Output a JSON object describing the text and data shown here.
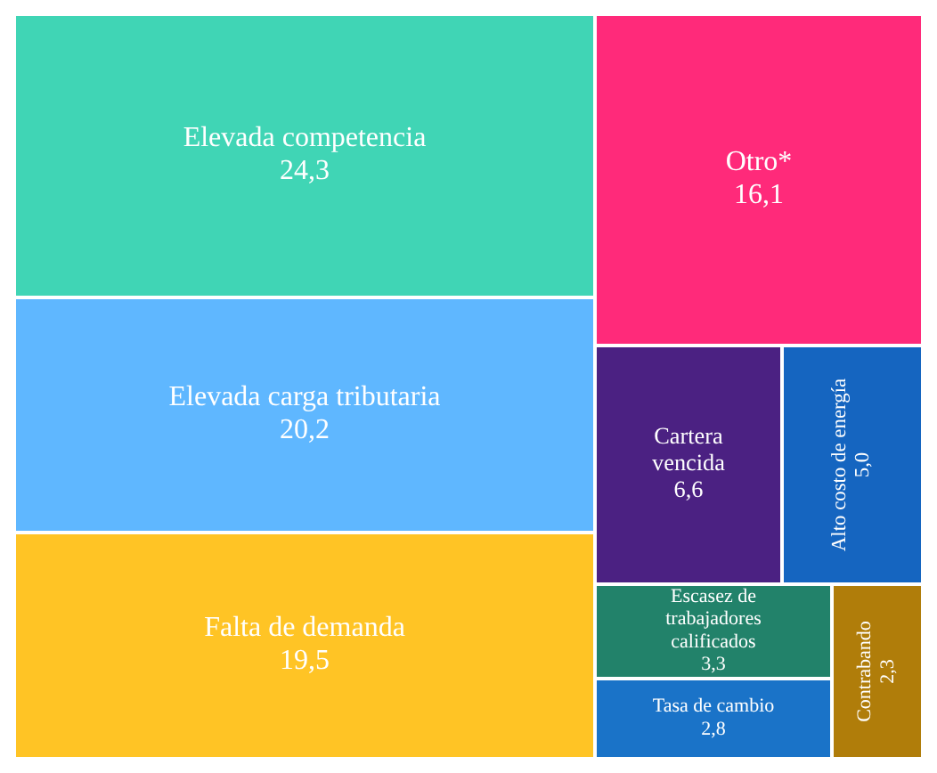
{
  "chart_data": {
    "type": "other",
    "categories": [
      "Elevada competencia",
      "Elevada carga tributaria",
      "Falta de demanda",
      "Otro*",
      "Cartera vencida",
      "Alto costo de energía",
      "Escasez de trabajadores calificados",
      "Tasa de cambio",
      "Contrabando"
    ],
    "values": [
      24.3,
      20.2,
      19.5,
      16.1,
      6.6,
      5.0,
      3.3,
      2.8,
      2.3
    ],
    "value_labels": [
      "24,3",
      "20,2",
      "19,5",
      "16,1",
      "6,6",
      "5,0",
      "3,3",
      "2,8",
      "2,3"
    ],
    "colors": [
      "#40d5b5",
      "#5fb7ff",
      "#ffc425",
      "#ff2a7a",
      "#4b2182",
      "#1565c0",
      "#22826a",
      "#1a73c8",
      "#b07d0a"
    ]
  }
}
